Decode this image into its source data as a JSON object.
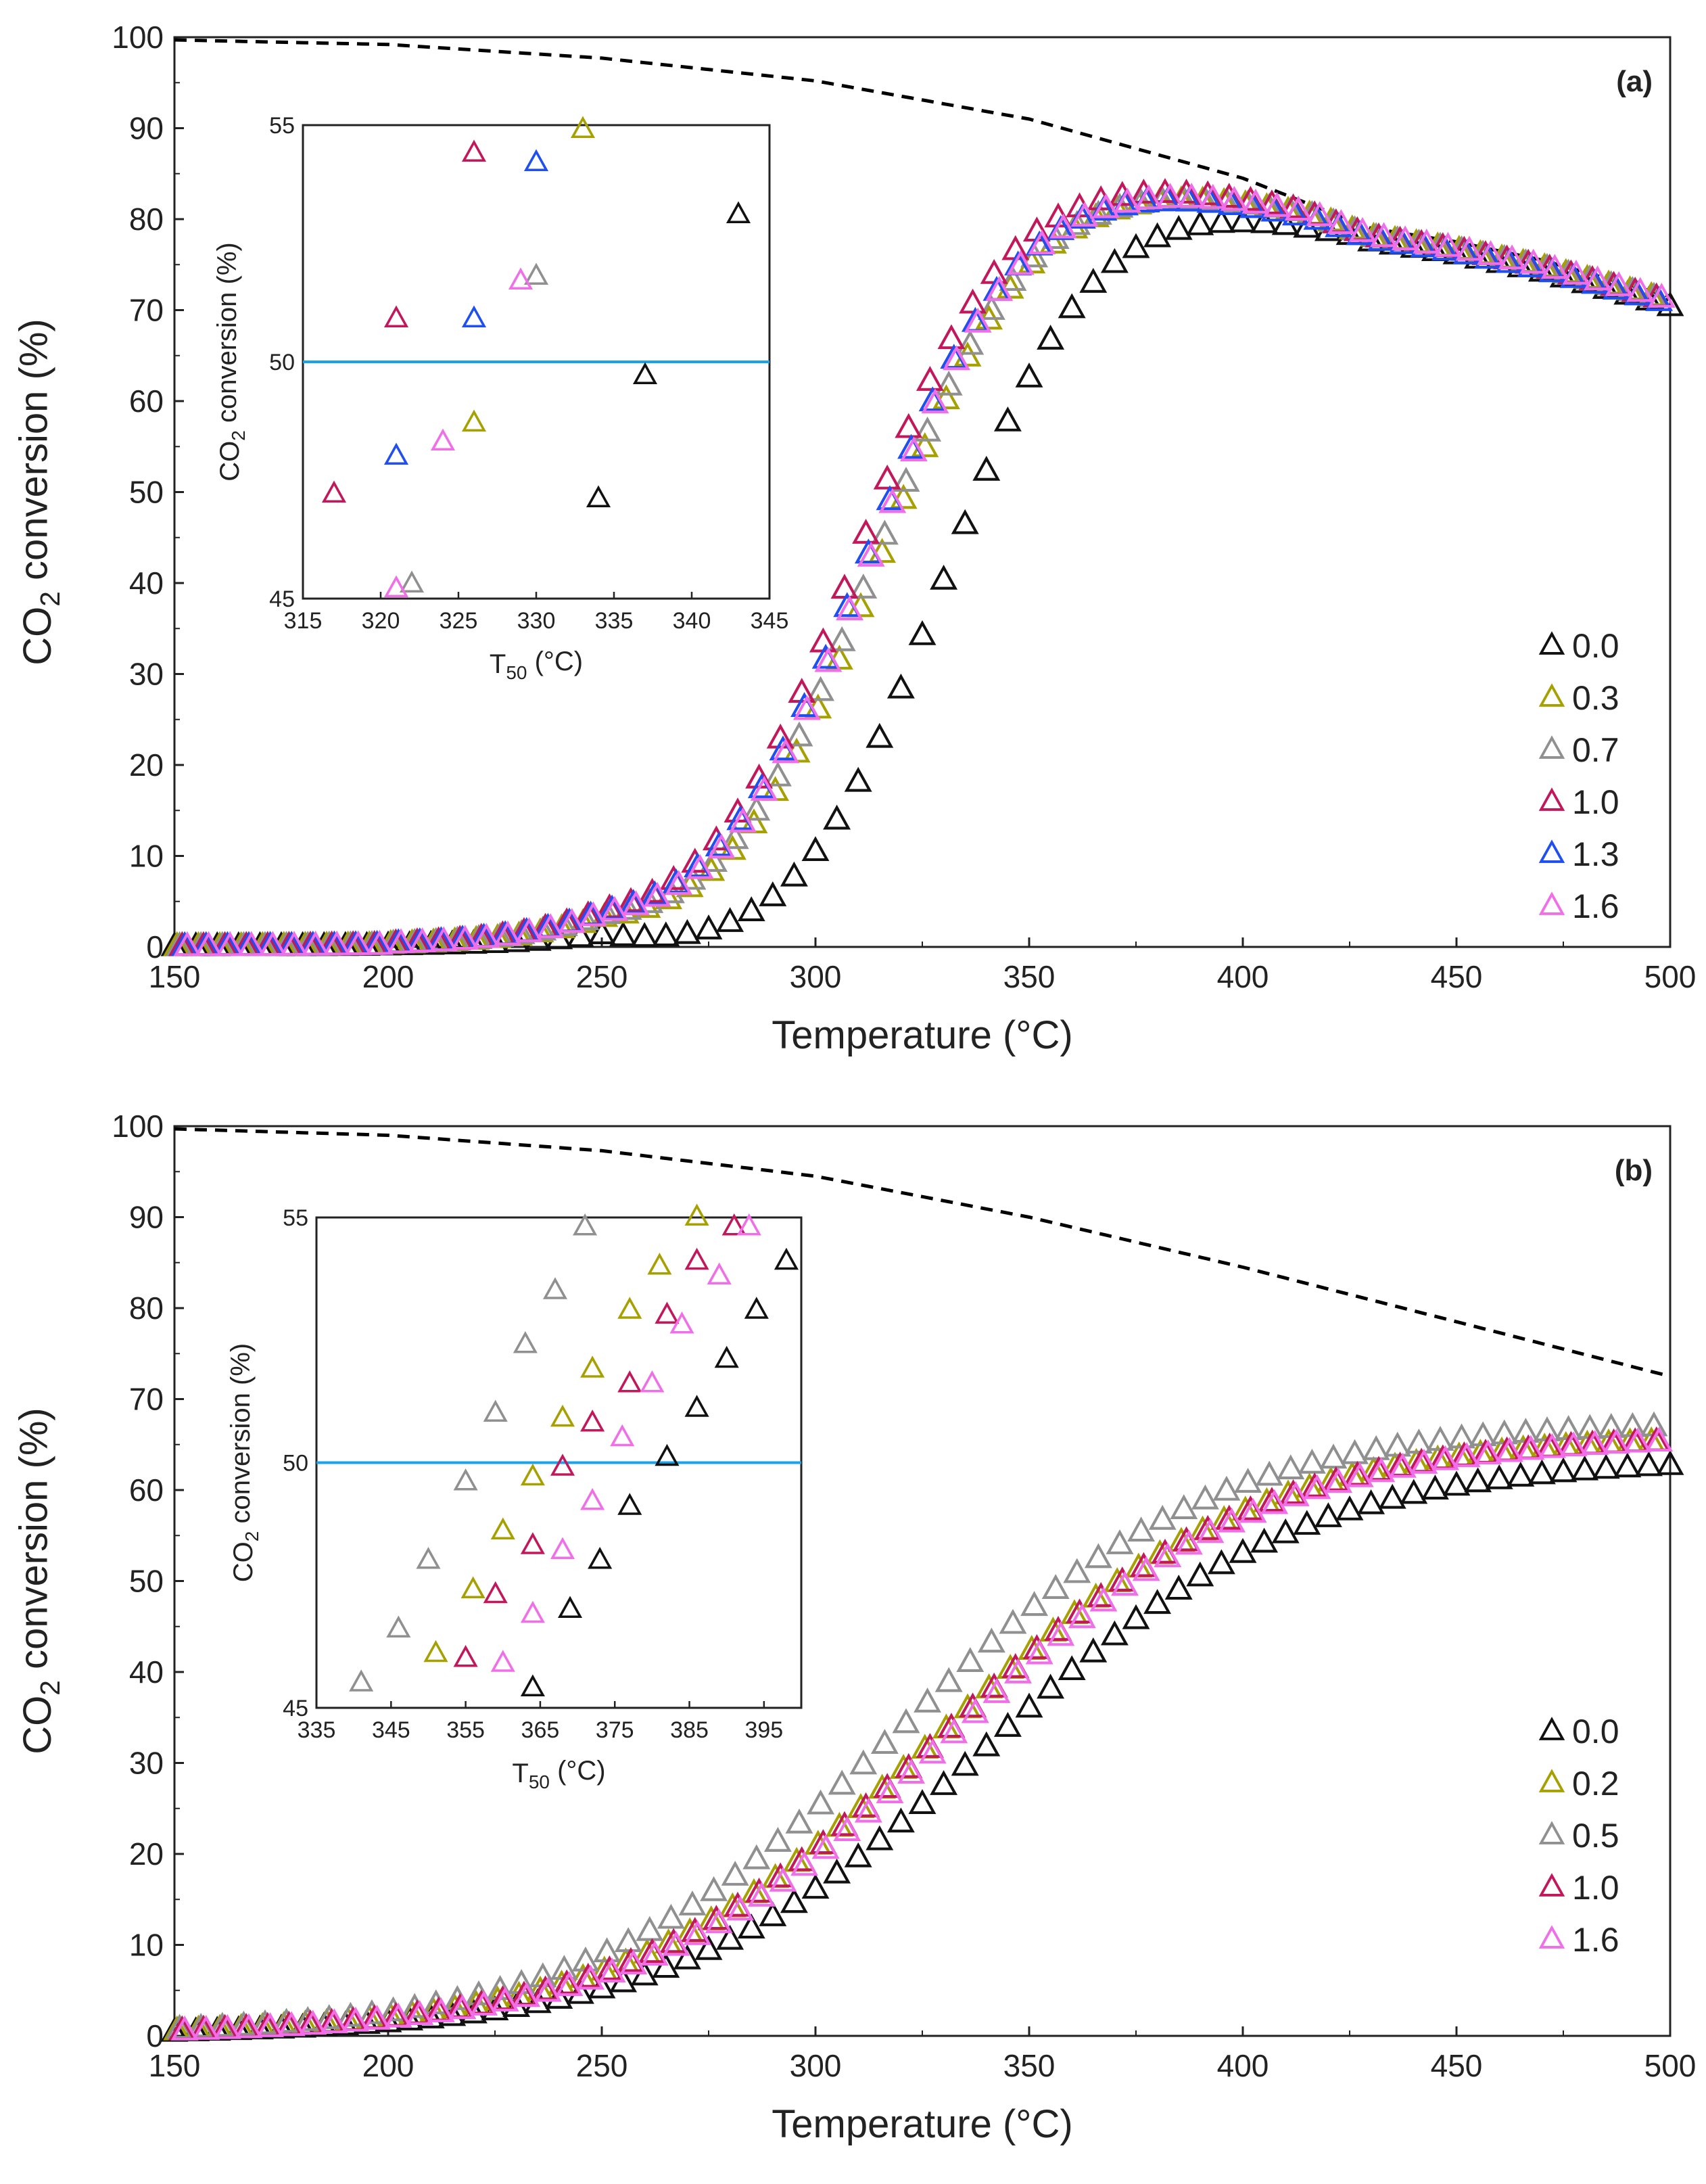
{
  "chart_data": [
    {
      "type": "scatter",
      "panel_label": "(a)",
      "xlabel": "Temperature (°C)",
      "ylabel": "CO2 conversion (%)",
      "ylabel_main": "CO",
      "ylabel_sub": "2",
      "ylabel_rest": " conversion (%)",
      "xlim": [
        150,
        500
      ],
      "ylim": [
        0,
        100
      ],
      "xticks": [
        150,
        200,
        250,
        300,
        350,
        400,
        450,
        500
      ],
      "yticks": [
        0,
        10,
        20,
        30,
        40,
        50,
        60,
        70,
        80,
        90,
        100
      ],
      "equilibrium": {
        "name": "equilibrium",
        "style": "dashed",
        "color": "#000000",
        "x": [
          150,
          200,
          250,
          300,
          350,
          400,
          430,
          450,
          470,
          500
        ],
        "y": [
          99.7,
          99.2,
          97.7,
          95.2,
          91.0,
          84.5,
          79.0,
          77.5,
          75.5,
          71.5
        ]
      },
      "series": [
        {
          "name": "0.0",
          "color": "#111111",
          "T50": 340,
          "Tmax": 427,
          "Ymax": 78.0,
          "slope": 0.054
        },
        {
          "name": "0.3",
          "color": "#a6a000",
          "T50": 325,
          "Tmax": 417,
          "Ymax": 80.3,
          "slope": 0.0525
        },
        {
          "name": "0.7",
          "color": "#909090",
          "T50": 324,
          "Tmax": 417,
          "Ymax": 80.3,
          "slope": 0.052
        },
        {
          "name": "1.0",
          "color": "#c2185b",
          "T50": 320,
          "Tmax": 413,
          "Ymax": 81.0,
          "slope": 0.053
        },
        {
          "name": "1.3",
          "color": "#1f4ff0",
          "T50": 322,
          "Tmax": 418,
          "Ymax": 79.8,
          "slope": 0.052
        },
        {
          "name": "1.6",
          "color": "#f06fe8",
          "T50": 323,
          "Tmax": 416,
          "Ymax": 80.6,
          "slope": 0.052
        }
      ],
      "inset": {
        "xlabel": "T50 (°C)",
        "xlabel_main": "T",
        "xlabel_sub": "50",
        "xlabel_rest": " (°C)",
        "ylabel_main": "CO",
        "ylabel_sub": "2",
        "ylabel_rest": " conversion (%)",
        "xlim": [
          315,
          345
        ],
        "ylim": [
          45,
          55
        ],
        "xticks": [
          315,
          320,
          325,
          330,
          335,
          340,
          345
        ],
        "yticks": [
          45,
          50,
          55
        ],
        "reference_line_y": 50,
        "reference_line_color": "#1aa3e8",
        "points": [
          {
            "series": "0.0",
            "x": 334,
            "y": 47.1
          },
          {
            "series": "0.0",
            "x": 337,
            "y": 49.7
          },
          {
            "series": "0.0",
            "x": 343,
            "y": 53.1
          },
          {
            "series": "0.3",
            "x": 326,
            "y": 48.7
          },
          {
            "series": "0.3",
            "x": 333,
            "y": 54.9
          },
          {
            "series": "0.7",
            "x": 322,
            "y": 45.3
          },
          {
            "series": "0.7",
            "x": 330,
            "y": 51.8
          },
          {
            "series": "1.0",
            "x": 317,
            "y": 47.2
          },
          {
            "series": "1.0",
            "x": 321,
            "y": 50.9
          },
          {
            "series": "1.0",
            "x": 326,
            "y": 54.4
          },
          {
            "series": "1.3",
            "x": 321,
            "y": 48.0
          },
          {
            "series": "1.3",
            "x": 326,
            "y": 50.9
          },
          {
            "series": "1.3",
            "x": 330,
            "y": 54.2
          },
          {
            "series": "1.6",
            "x": 321,
            "y": 45.2
          },
          {
            "series": "1.6",
            "x": 324,
            "y": 48.3
          },
          {
            "series": "1.6",
            "x": 329,
            "y": 51.7
          }
        ]
      }
    },
    {
      "type": "scatter",
      "panel_label": "(b)",
      "xlabel": "Temperature (°C)",
      "ylabel": "CO2 conversion (%)",
      "ylabel_main": "CO",
      "ylabel_sub": "2",
      "ylabel_rest": " conversion (%)",
      "xlim": [
        150,
        500
      ],
      "ylim": [
        0,
        100
      ],
      "xticks": [
        150,
        200,
        250,
        300,
        350,
        400,
        450,
        500
      ],
      "yticks": [
        0,
        10,
        20,
        30,
        40,
        50,
        60,
        70,
        80,
        90,
        100
      ],
      "equilibrium": {
        "name": "equilibrium",
        "style": "dashed",
        "color": "#000000",
        "x": [
          150,
          200,
          250,
          300,
          350,
          400,
          450,
          500
        ],
        "y": [
          99.7,
          99.0,
          97.3,
          94.5,
          90.0,
          84.5,
          78.5,
          72.5
        ]
      },
      "series": [
        {
          "name": "0.0",
          "color": "#111111",
          "Ymax": 63.5,
          "T50": 400,
          "slope": 0.027
        },
        {
          "name": "0.2",
          "color": "#a6a000",
          "Ymax": 66.0,
          "T50": 389,
          "slope": 0.027
        },
        {
          "name": "0.5",
          "color": "#909090",
          "Ymax": 67.5,
          "T50": 380,
          "slope": 0.027
        },
        {
          "name": "1.0",
          "color": "#c2185b",
          "Ymax": 66.0,
          "T50": 390,
          "slope": 0.027
        },
        {
          "name": "1.6",
          "color": "#f06fe8",
          "Ymax": 66.0,
          "T50": 392,
          "slope": 0.027
        }
      ],
      "inset": {
        "xlabel": "T50 (°C)",
        "xlabel_main": "T",
        "xlabel_sub": "50",
        "xlabel_rest": " (°C)",
        "ylabel_main": "CO",
        "ylabel_sub": "2",
        "ylabel_rest": " conversion (%)",
        "xlim": [
          335,
          400
        ],
        "ylim": [
          45,
          55
        ],
        "xticks": [
          335,
          345,
          355,
          365,
          375,
          385,
          395
        ],
        "yticks": [
          45,
          50,
          55
        ],
        "reference_line_y": 50,
        "reference_line_color": "#1aa3e8",
        "points": [
          {
            "series": "0.0",
            "x": 364,
            "y": 45.4
          },
          {
            "series": "0.0",
            "x": 369,
            "y": 47.0
          },
          {
            "series": "0.0",
            "x": 373,
            "y": 48.0
          },
          {
            "series": "0.0",
            "x": 377,
            "y": 49.1
          },
          {
            "series": "0.0",
            "x": 382,
            "y": 50.1
          },
          {
            "series": "0.0",
            "x": 386,
            "y": 51.1
          },
          {
            "series": "0.0",
            "x": 390,
            "y": 52.1
          },
          {
            "series": "0.0",
            "x": 394,
            "y": 53.1
          },
          {
            "series": "0.0",
            "x": 398,
            "y": 54.1
          },
          {
            "series": "0.2",
            "x": 351,
            "y": 46.1
          },
          {
            "series": "0.2",
            "x": 356,
            "y": 47.4
          },
          {
            "series": "0.2",
            "x": 360,
            "y": 48.6
          },
          {
            "series": "0.2",
            "x": 364,
            "y": 49.7
          },
          {
            "series": "0.2",
            "x": 368,
            "y": 50.9
          },
          {
            "series": "0.2",
            "x": 372,
            "y": 51.9
          },
          {
            "series": "0.2",
            "x": 377,
            "y": 53.1
          },
          {
            "series": "0.2",
            "x": 381,
            "y": 54.0
          },
          {
            "series": "0.2",
            "x": 386,
            "y": 55.0
          },
          {
            "series": "0.5",
            "x": 341,
            "y": 45.5
          },
          {
            "series": "0.5",
            "x": 346,
            "y": 46.6
          },
          {
            "series": "0.5",
            "x": 350,
            "y": 48.0
          },
          {
            "series": "0.5",
            "x": 355,
            "y": 49.6
          },
          {
            "series": "0.5",
            "x": 359,
            "y": 51.0
          },
          {
            "series": "0.5",
            "x": 363,
            "y": 52.4
          },
          {
            "series": "0.5",
            "x": 367,
            "y": 53.5
          },
          {
            "series": "0.5",
            "x": 371,
            "y": 54.8
          },
          {
            "series": "1.0",
            "x": 355,
            "y": 46.0
          },
          {
            "series": "1.0",
            "x": 359,
            "y": 47.3
          },
          {
            "series": "1.0",
            "x": 364,
            "y": 48.3
          },
          {
            "series": "1.0",
            "x": 368,
            "y": 49.9
          },
          {
            "series": "1.0",
            "x": 372,
            "y": 50.8
          },
          {
            "series": "1.0",
            "x": 377,
            "y": 51.6
          },
          {
            "series": "1.0",
            "x": 382,
            "y": 53.0
          },
          {
            "series": "1.0",
            "x": 386,
            "y": 54.1
          },
          {
            "series": "1.0",
            "x": 391,
            "y": 54.8
          },
          {
            "series": "1.6",
            "x": 360,
            "y": 45.9
          },
          {
            "series": "1.6",
            "x": 364,
            "y": 46.9
          },
          {
            "series": "1.6",
            "x": 368,
            "y": 48.2
          },
          {
            "series": "1.6",
            "x": 372,
            "y": 49.2
          },
          {
            "series": "1.6",
            "x": 376,
            "y": 50.5
          },
          {
            "series": "1.6",
            "x": 380,
            "y": 51.6
          },
          {
            "series": "1.6",
            "x": 384,
            "y": 52.8
          },
          {
            "series": "1.6",
            "x": 389,
            "y": 53.8
          },
          {
            "series": "1.6",
            "x": 393,
            "y": 54.8
          }
        ]
      }
    }
  ]
}
